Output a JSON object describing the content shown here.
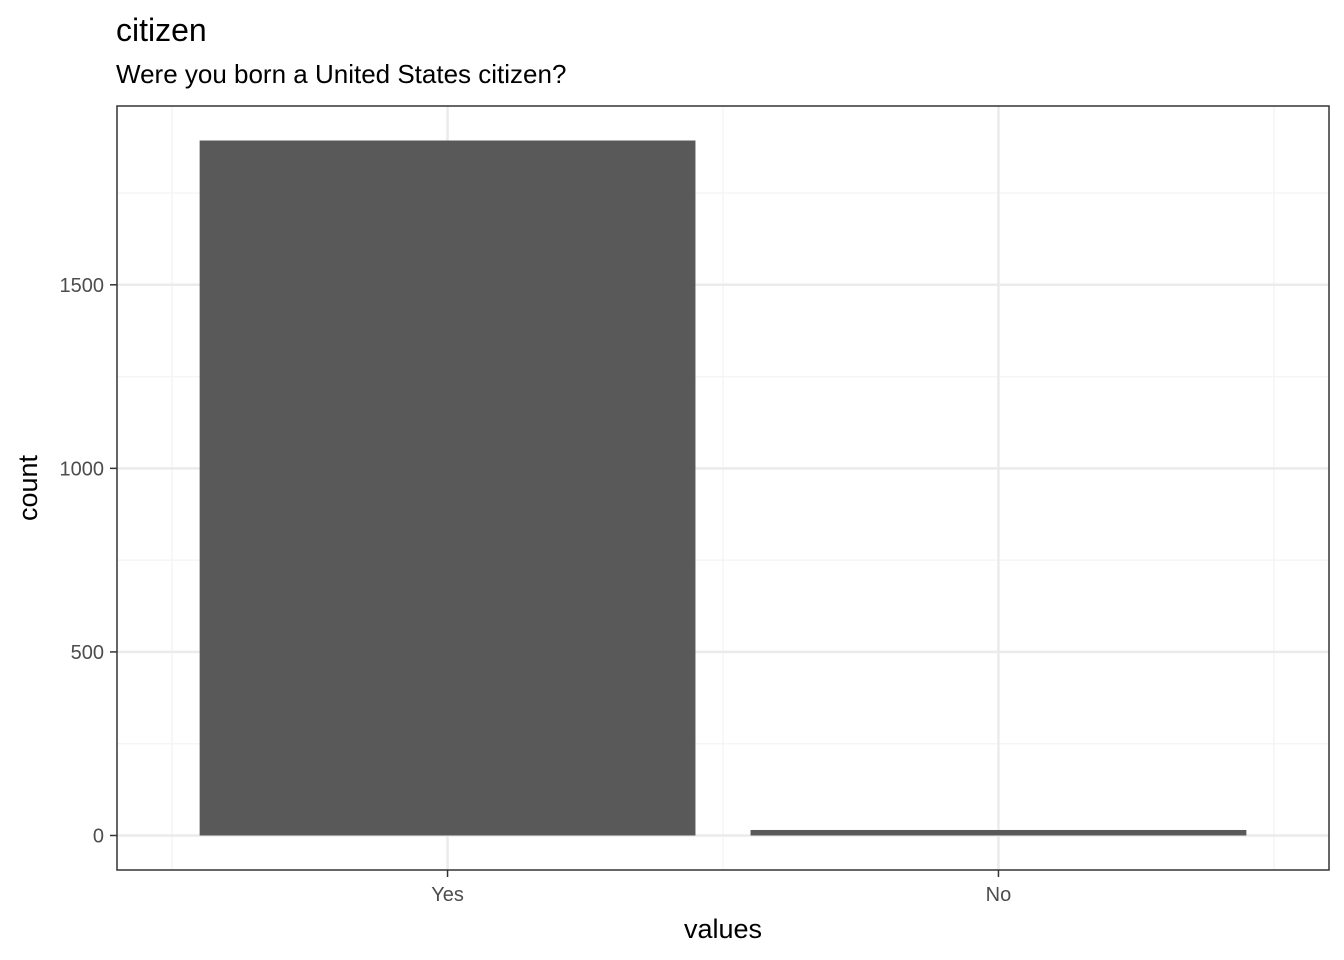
{
  "chart_data": {
    "type": "bar",
    "title": "citizen",
    "subtitle": "Were you born a United States citizen?",
    "xlabel": "values",
    "ylabel": "count",
    "categories": [
      "Yes",
      "No"
    ],
    "values": [
      1893,
      15
    ],
    "ylim": [
      -94,
      1987
    ],
    "yticks": [
      0,
      500,
      1000,
      1500
    ],
    "ytick_labels": [
      "0",
      "500",
      "1000",
      "1500"
    ],
    "grid": true,
    "bar_color": "#595959",
    "panel_border_color": "#333333",
    "grid_major_color": "#ebebeb",
    "grid_minor_color": "#f5f5f5"
  }
}
